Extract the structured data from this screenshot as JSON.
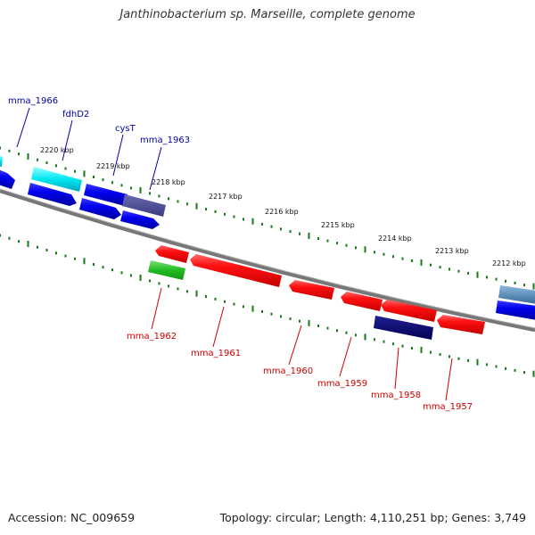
{
  "title": "Janthinobacterium sp. Marseille, complete genome",
  "accession": "Accession: NC_009659",
  "stats": "Topology: circular; Length: 4,110,251 bp; Genes: 3,749",
  "kbp_labels": [
    "2220 kbp",
    "2219 kbp",
    "2218 kbp",
    "2217 kbp",
    "2216 kbp",
    "2215 kbp",
    "2214 kbp",
    "2213 kbp",
    "2212 kbp"
  ],
  "top_genes": [
    "mma_1966",
    "fdhD2",
    "cysT",
    "mma_1963"
  ],
  "bottom_genes": [
    "mma_1962",
    "mma_1961",
    "mma_1960",
    "mma_1959",
    "mma_1958",
    "mma_1957"
  ],
  "colors": {
    "top_label": "#0000aa",
    "bottom_label": "#cc0000",
    "tick": "#1a7a1a",
    "backbone": "#777777"
  }
}
